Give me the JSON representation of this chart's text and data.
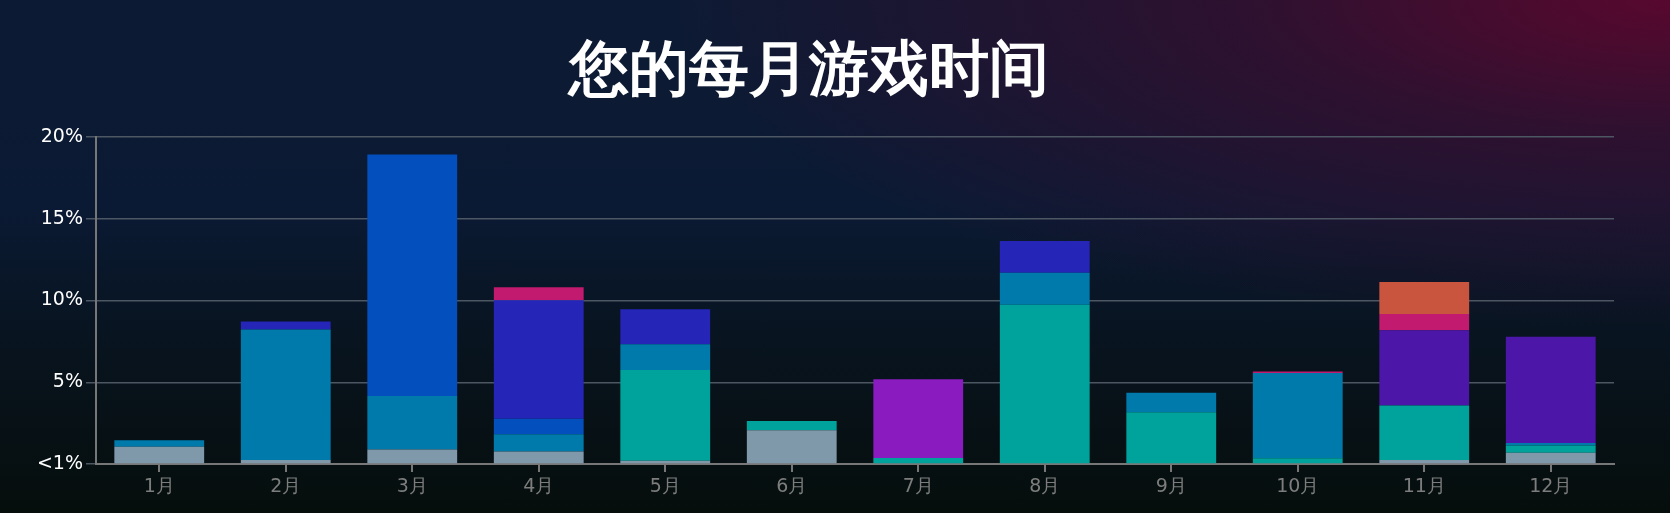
{
  "chart_data": {
    "type": "bar",
    "title": "您的每月游戏时间",
    "categories": [
      "1月",
      "2月",
      "3月",
      "4月",
      "5月",
      "6月",
      "7月",
      "8月",
      "9月",
      "10月",
      "11月",
      "12月"
    ],
    "series": [
      {
        "color": "#7f98aa",
        "values": [
          1.05,
          0.24,
          0.88,
          0.77,
          0.2,
          2.06,
          null,
          null,
          null,
          null,
          0.25,
          0.69
        ]
      },
      {
        "color": "#00a39b",
        "values": [
          null,
          null,
          null,
          null,
          5.55,
          0.57,
          0.37,
          9.74,
          3.16,
          0.35,
          3.33,
          0.44
        ]
      },
      {
        "color": "#007aab",
        "values": [
          0.4,
          7.99,
          3.28,
          1.05,
          1.58,
          null,
          null,
          1.95,
          1.2,
          5.22,
          null,
          0.16
        ]
      },
      {
        "color": "#044fbe",
        "values": [
          null,
          null,
          14.77,
          0.94,
          null,
          null,
          null,
          null,
          null,
          null,
          null,
          null
        ]
      },
      {
        "color": "#2525b8",
        "values": [
          null,
          0.48,
          null,
          7.26,
          2.14,
          null,
          null,
          1.95,
          null,
          null,
          null,
          null
        ]
      },
      {
        "color": "#8a1cbf",
        "values": [
          null,
          null,
          null,
          null,
          null,
          null,
          4.82,
          null,
          null,
          null,
          null,
          null
        ]
      },
      {
        "color": "#4c17a8",
        "values": [
          null,
          null,
          null,
          null,
          null,
          null,
          null,
          null,
          null,
          null,
          4.6,
          6.49
        ]
      },
      {
        "color": "#c21a6e",
        "values": [
          null,
          null,
          null,
          0.79,
          null,
          null,
          null,
          null,
          null,
          0.08,
          0.99,
          null
        ]
      },
      {
        "color": "#c9553f",
        "values": [
          null,
          null,
          null,
          null,
          null,
          null,
          null,
          null,
          null,
          null,
          1.96,
          null
        ]
      }
    ],
    "stacked": true,
    "ylim": [
      0,
      20
    ],
    "yticks": [
      {
        "value": 0,
        "label": "<1%"
      },
      {
        "value": 5,
        "label": "5%"
      },
      {
        "value": 10,
        "label": "10%"
      },
      {
        "value": 15,
        "label": "15%"
      },
      {
        "value": 20,
        "label": "20%"
      }
    ],
    "grid": "y"
  }
}
